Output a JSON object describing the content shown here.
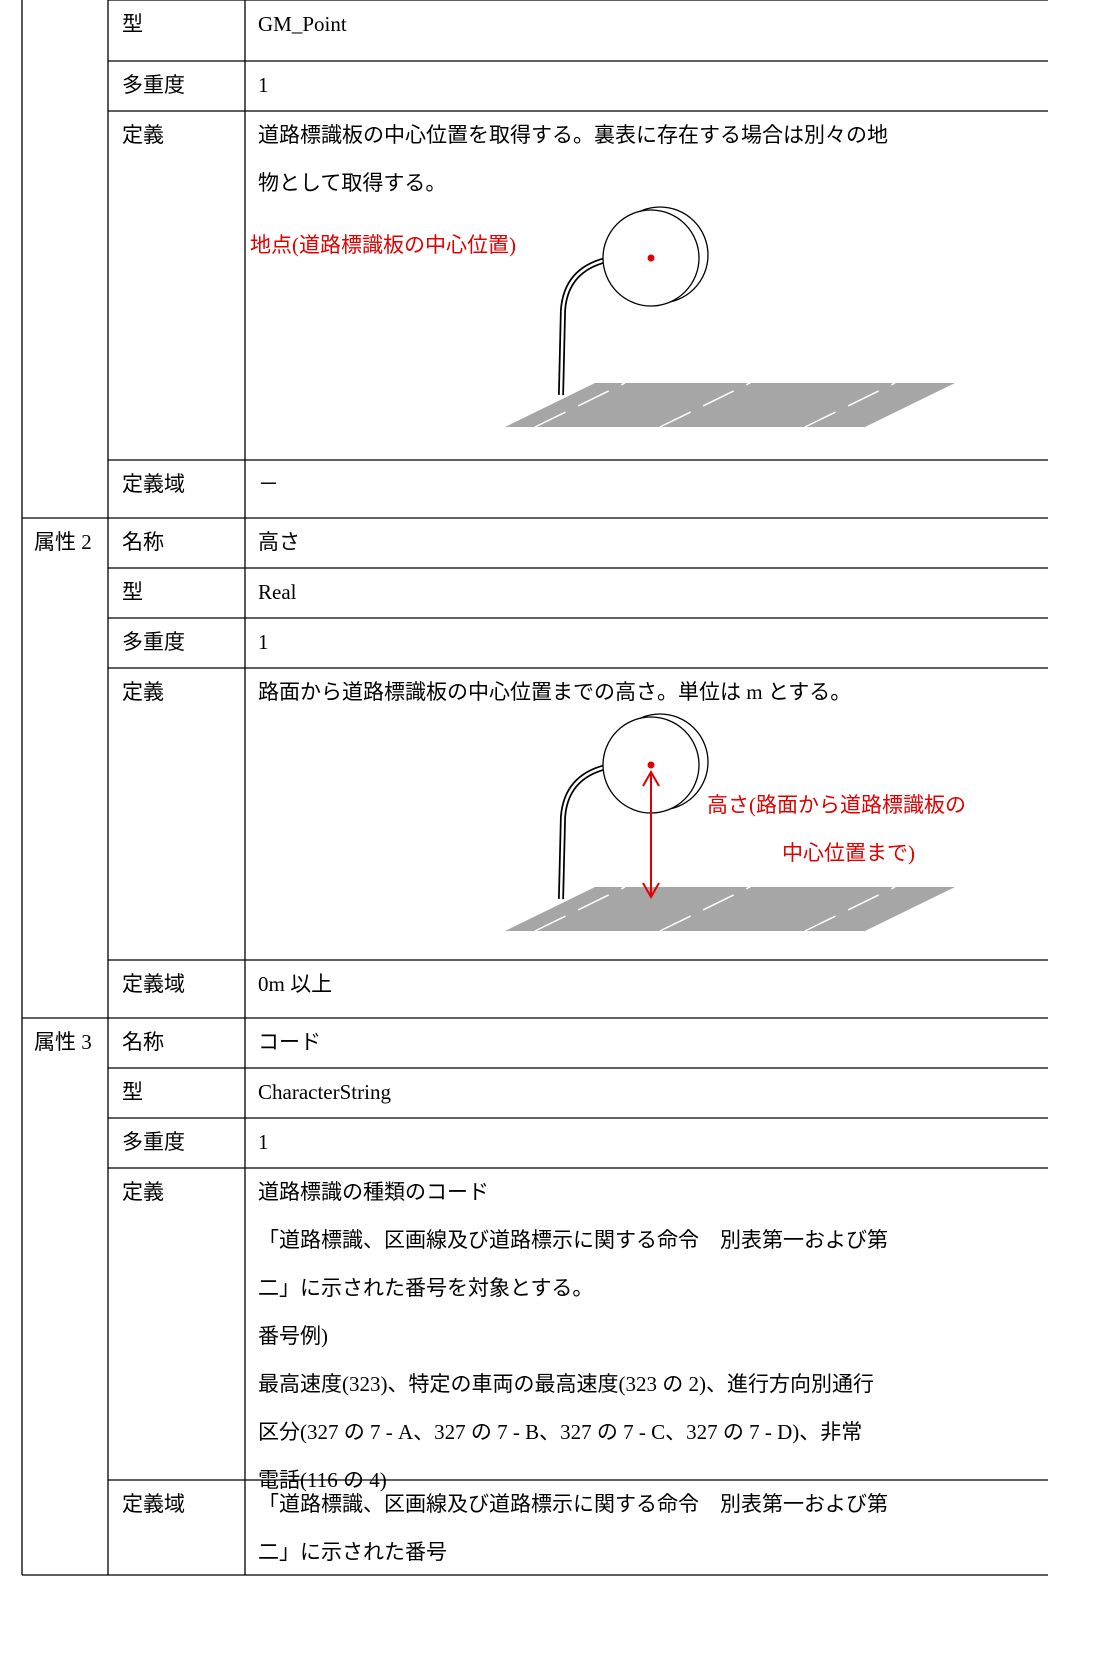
{
  "attributes": [
    {
      "rows": [
        {
          "name": "型",
          "value": "GM_Point"
        },
        {
          "name": "多重度",
          "value": "1"
        },
        {
          "name": "定義",
          "lines": [
            "道路標識板の中心位置を取得する。裏表に存在する場合は別々の地",
            "物として取得する。"
          ],
          "figure_label": [
            "地点(道路標識板の中心位置)"
          ]
        },
        {
          "name": "定義域",
          "value": "－"
        }
      ]
    },
    {
      "label": "属性 2",
      "rows": [
        {
          "name": "名称",
          "value": "高さ"
        },
        {
          "name": "型",
          "value": "Real"
        },
        {
          "name": "多重度",
          "value": "1"
        },
        {
          "name": "定義",
          "lines": [
            "路面から道路標識板の中心位置までの高さ。単位は m とする。"
          ],
          "figure_label": [
            "高さ(路面から道路標識板の",
            "中心位置まで)"
          ]
        },
        {
          "name": "定義域",
          "value": "0m 以上"
        }
      ]
    },
    {
      "label": "属性 3",
      "rows": [
        {
          "name": "名称",
          "value": "コード"
        },
        {
          "name": "型",
          "value": "CharacterString"
        },
        {
          "name": "多重度",
          "value": "1"
        },
        {
          "name": "定義",
          "lines": [
            "道路標識の種類のコード",
            "「道路標識、区画線及び道路標示に関する命令　別表第一および第",
            "二」に示された番号を対象とする。",
            "番号例)",
            "最高速度(323)、特定の車両の最高速度(323 の 2)、進行方向別通行",
            "区分(327 の 7 - A、327 の 7 - B、327 の 7 - C、327 の 7 - D)、非常",
            "電話(116 の 4)"
          ]
        },
        {
          "name": "定義域",
          "lines": [
            "「道路標識、区画線及び道路標示に関する命令　別表第一および第",
            "二」に示された番号"
          ]
        }
      ]
    }
  ]
}
